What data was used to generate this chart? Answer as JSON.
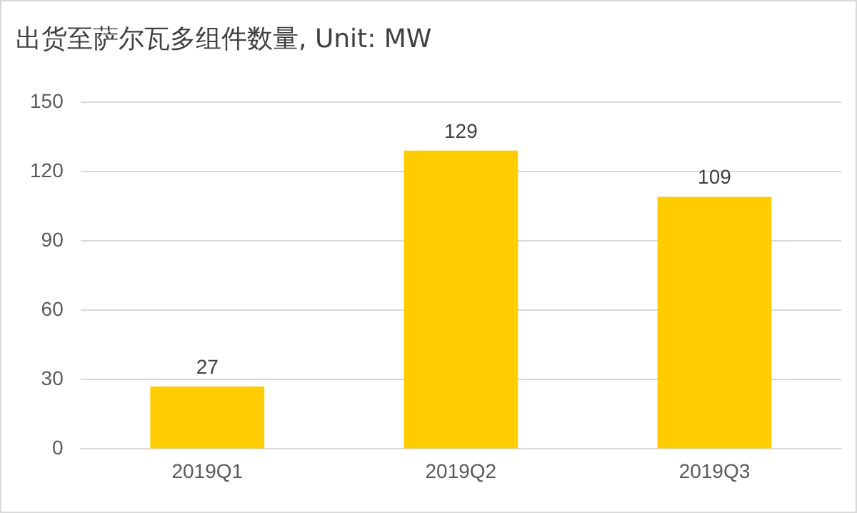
{
  "chart_data": {
    "type": "bar",
    "title": "出货至萨尔瓦多组件数量, Unit: MW",
    "categories": [
      "2019Q1",
      "2019Q2",
      "2019Q3"
    ],
    "values": [
      27,
      129,
      109
    ],
    "color": "#ffcc00",
    "ylim": [
      0,
      150
    ],
    "yticks": [
      0,
      30,
      60,
      90,
      120,
      150
    ],
    "grid": "y",
    "data_labels": true
  }
}
